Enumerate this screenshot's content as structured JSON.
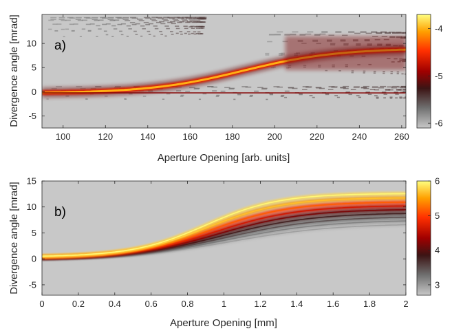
{
  "chart_data": [
    {
      "type": "heatmap",
      "panel_label": "a)",
      "xlabel": "Aperture Opening [arb. units]",
      "ylabel": "Divergence angle [mrad]",
      "xlim": [
        90,
        262
      ],
      "ylim": [
        -7.5,
        16
      ],
      "x_ticks": [
        100,
        120,
        140,
        160,
        180,
        200,
        220,
        240,
        260
      ],
      "y_ticks": [
        -5,
        0,
        5,
        10
      ],
      "colorbar": {
        "range": [
          -6.1,
          -3.7
        ],
        "ticks": [
          -6,
          -5,
          -4
        ]
      },
      "background_color": "#c8c8c8",
      "beams": [
        {
          "name": "main",
          "x_from": 90,
          "x_to": 262,
          "y_start": -0.3,
          "y_end": 9.0,
          "x_mid": 185,
          "slope_width": 22,
          "intensity": [
            -4.0,
            -4.4
          ]
        },
        {
          "name": "axis",
          "x_from": 90,
          "x_to": 262,
          "y_start": -0.15,
          "y_end": -0.3,
          "x_mid": 200,
          "slope_width": 40,
          "intensity": [
            -5.0,
            -5.0
          ]
        }
      ]
    },
    {
      "type": "heatmap",
      "panel_label": "b)",
      "xlabel": "Aperture Opening [mm]",
      "ylabel": "Divergence angle [mrad]",
      "xlim": [
        0,
        2
      ],
      "ylim": [
        -7,
        15
      ],
      "x_ticks": [
        0,
        0.2,
        0.4,
        0.6,
        0.8,
        1,
        1.2,
        1.4,
        1.6,
        1.8,
        2
      ],
      "y_ticks": [
        -5,
        0,
        5,
        10,
        15
      ],
      "colorbar": {
        "range": [
          2.7,
          6.0
        ],
        "ticks": [
          3,
          4,
          5,
          6
        ]
      },
      "background_color": "#c8c8c8",
      "curves": [
        {
          "y_start": 0.4,
          "y_end": 12.6,
          "x_mid": 0.9,
          "width": 0.2,
          "intensity": 5.8
        },
        {
          "y_start": 0.3,
          "y_end": 11.8,
          "x_mid": 0.91,
          "width": 0.21,
          "intensity": 5.5
        },
        {
          "y_start": 0.2,
          "y_end": 11.0,
          "x_mid": 0.93,
          "width": 0.22,
          "intensity": 5.0
        },
        {
          "y_start": 0.1,
          "y_end": 10.3,
          "x_mid": 0.95,
          "width": 0.23,
          "intensity": 4.5
        },
        {
          "y_start": 0.05,
          "y_end": 9.6,
          "x_mid": 0.97,
          "width": 0.24,
          "intensity": 4.0
        },
        {
          "y_start": 0.0,
          "y_end": 8.9,
          "x_mid": 0.99,
          "width": 0.25,
          "intensity": 3.6
        },
        {
          "y_start": 0.0,
          "y_end": 8.2,
          "x_mid": 1.01,
          "width": 0.26,
          "intensity": 3.3
        },
        {
          "y_start": 0.0,
          "y_end": 7.5,
          "x_mid": 1.03,
          "width": 0.27,
          "intensity": 3.0
        },
        {
          "y_start": 0.0,
          "y_end": 6.8,
          "x_mid": 1.05,
          "width": 0.28,
          "intensity": 2.8
        }
      ]
    }
  ]
}
